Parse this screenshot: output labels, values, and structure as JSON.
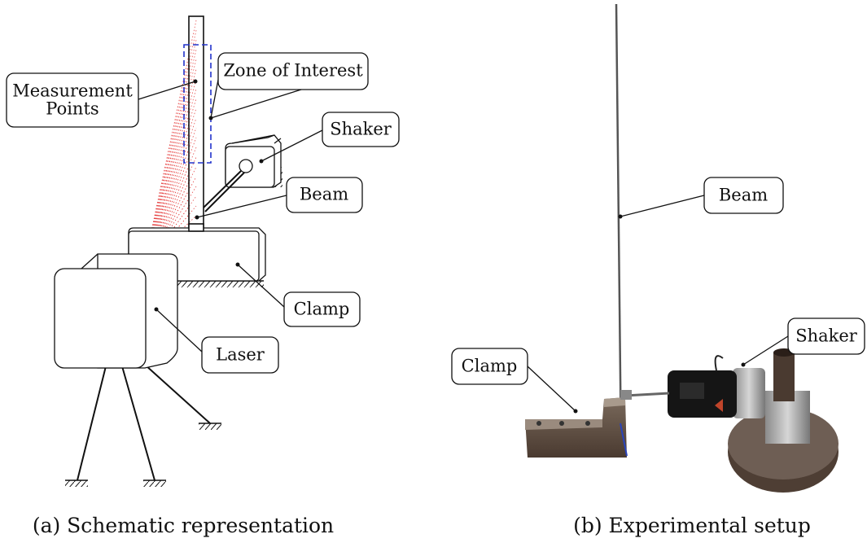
{
  "panels": [
    {
      "caption": "(a) Schematic representation",
      "labels": [
        {
          "lines": [
            "Measurement",
            "Points"
          ]
        },
        {
          "lines": [
            "Zone of Interest"
          ]
        },
        {
          "lines": [
            "Shaker"
          ]
        },
        {
          "lines": [
            "Beam"
          ]
        },
        {
          "lines": [
            "Clamp"
          ]
        },
        {
          "lines": [
            "Laser"
          ]
        }
      ]
    },
    {
      "caption": "(b) Experimental setup",
      "labels": [
        {
          "lines": [
            "Beam"
          ]
        },
        {
          "lines": [
            "Shaker"
          ]
        },
        {
          "lines": [
            "Clamp"
          ]
        }
      ]
    }
  ]
}
